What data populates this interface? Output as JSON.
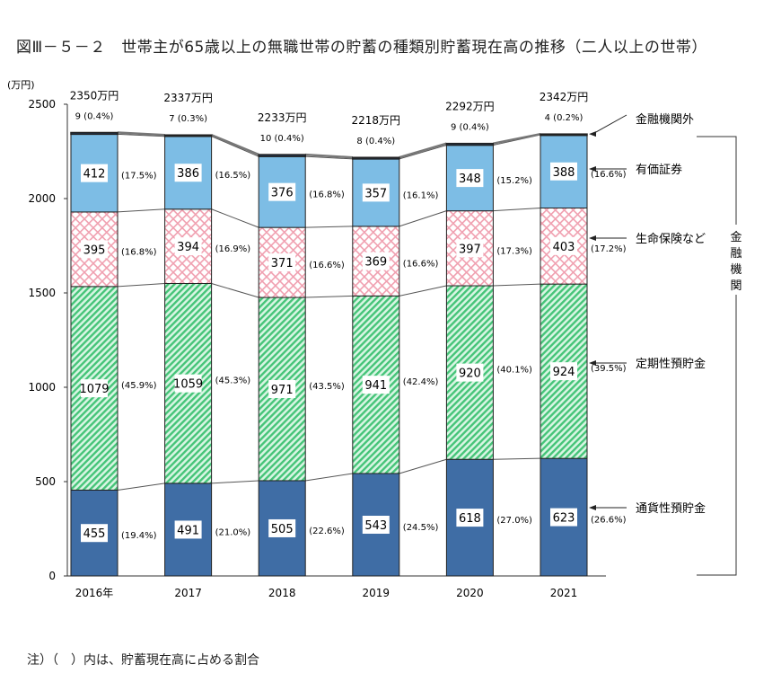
{
  "chart_data": {
    "type": "bar",
    "stacked": true,
    "title": "図Ⅲ－５－２　世帯主が65歳以上の無職世帯の貯蓄の種類別貯蓄現在高の推移（二人以上の世帯）",
    "ylabel": "(万円)",
    "xlabel": "",
    "ylim": [
      0,
      2500
    ],
    "yticks": [
      0,
      500,
      1000,
      1500,
      2000,
      2500
    ],
    "grid": false,
    "categories": [
      "2016年",
      "2017",
      "2018",
      "2019",
      "2020",
      "2021"
    ],
    "totals": [
      2350,
      2337,
      2233,
      2218,
      2292,
      2342
    ],
    "total_unit": "万円",
    "series": [
      {
        "name": "通貨性預貯金",
        "color": "#3f6da5",
        "pattern": "solid",
        "values": [
          455,
          491,
          505,
          543,
          618,
          623
        ],
        "percent": [
          19.4,
          21.0,
          22.6,
          24.5,
          27.0,
          26.6
        ]
      },
      {
        "name": "定期性預貯金",
        "color": "#55cf86",
        "pattern": "diagonal-hatch",
        "values": [
          1079,
          1059,
          971,
          941,
          920,
          924
        ],
        "percent": [
          45.9,
          45.3,
          43.5,
          42.4,
          40.1,
          39.5
        ]
      },
      {
        "name": "生命保険など",
        "color": "#f2a9b6",
        "pattern": "crosshatch",
        "values": [
          395,
          394,
          371,
          369,
          397,
          403
        ],
        "percent": [
          16.8,
          16.9,
          16.6,
          16.6,
          17.3,
          17.2
        ]
      },
      {
        "name": "有価証券",
        "color": "#7dbde5",
        "pattern": "solid",
        "values": [
          412,
          386,
          376,
          357,
          348,
          388
        ],
        "percent": [
          17.5,
          16.5,
          16.8,
          16.1,
          15.2,
          16.6
        ]
      },
      {
        "name": "金融機関外",
        "color": "#1d3d66",
        "pattern": "solid",
        "values": [
          9,
          7,
          10,
          8,
          9,
          4
        ],
        "percent": [
          0.4,
          0.3,
          0.4,
          0.4,
          0.4,
          0.2
        ]
      }
    ],
    "bracket_label": "金融機関",
    "legend": "right-annotations"
  },
  "note": "注）（　）内は、貯蓄現在高に占める割合"
}
